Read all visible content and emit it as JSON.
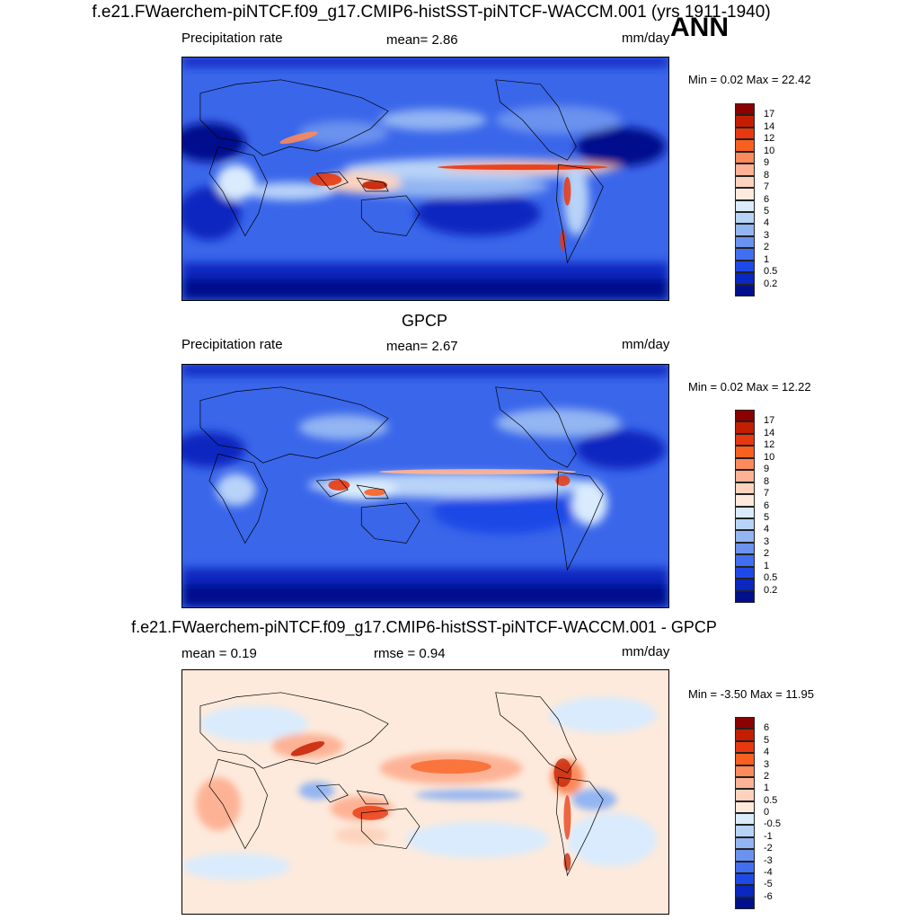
{
  "title": "f.e21.FWaerchem-piNTCF.f09_g17.CMIP6-histSST-piNTCF-WACCM.001 (yrs 1911-1940)",
  "season": "ANN",
  "panels": [
    {
      "title": "",
      "left_label": "Precipitation rate",
      "center_label": "mean=   2.86",
      "right_label": "mm/day",
      "minmax": "Min =   0.02 Max =  22.42",
      "levels": [
        "17",
        "14",
        "12",
        "10",
        "9",
        "8",
        "7",
        "6",
        "5",
        "4",
        "3",
        "2",
        "1",
        "0.5",
        "0.2"
      ],
      "colors": [
        "#8c0000",
        "#c41e00",
        "#e8380f",
        "#f86020",
        "#fb8a5c",
        "#fdb295",
        "#fdd3bd",
        "#fdeadc",
        "#d9ebfd",
        "#b8d3f8",
        "#93b5f2",
        "#6a92ee",
        "#416ff0",
        "#1f49e6",
        "#0a27c0",
        "#00108c"
      ]
    },
    {
      "title": "GPCP",
      "left_label": "Precipitation rate",
      "center_label": "mean=   2.67",
      "right_label": "mm/day",
      "minmax": "Min =   0.02 Max =  12.22",
      "levels": [
        "17",
        "14",
        "12",
        "10",
        "9",
        "8",
        "7",
        "6",
        "5",
        "4",
        "3",
        "2",
        "1",
        "0.5",
        "0.2"
      ],
      "colors": [
        "#8c0000",
        "#c41e00",
        "#e8380f",
        "#f86020",
        "#fb8a5c",
        "#fdb295",
        "#fdd3bd",
        "#fdeadc",
        "#d9ebfd",
        "#b8d3f8",
        "#93b5f2",
        "#6a92ee",
        "#416ff0",
        "#1f49e6",
        "#0a27c0",
        "#00108c"
      ]
    },
    {
      "title": "f.e21.FWaerchem-piNTCF.f09_g17.CMIP6-histSST-piNTCF-WACCM.001 - GPCP",
      "left_label": "mean =   0.19",
      "center_label": "rmse =   0.94",
      "right_label": "mm/day",
      "minmax": "Min =  -3.50 Max =  11.95",
      "levels": [
        "6",
        "5",
        "4",
        "3",
        "2",
        "1",
        "0.5",
        "0",
        "-0.5",
        "-1",
        "-2",
        "-3",
        "-4",
        "-5",
        "-6"
      ],
      "colors": [
        "#8c0000",
        "#c41e00",
        "#e8380f",
        "#f86020",
        "#fb8a5c",
        "#fdb295",
        "#fdd3bd",
        "#fdeadc",
        "#d9ebfd",
        "#b8d3f8",
        "#93b5f2",
        "#6a92ee",
        "#416ff0",
        "#1f49e6",
        "#0a27c0",
        "#00108c"
      ]
    }
  ]
}
